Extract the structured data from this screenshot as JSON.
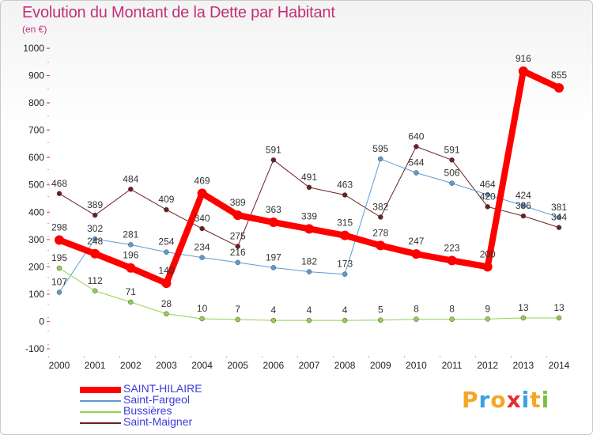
{
  "title": "Evolution du Montant de la Dette par Habitant",
  "subtitle": "(en €)",
  "brand": {
    "letters": [
      "P",
      "r",
      "o",
      "x",
      "i",
      "t",
      "i"
    ],
    "colors": [
      "#f5a623",
      "#3aa0e0",
      "#f5a623",
      "#e53030",
      "#3aa0e0",
      "#f5a623",
      "#7ac143"
    ]
  },
  "chart_data": {
    "type": "line",
    "title": "Evolution du Montant de la Dette par Habitant",
    "ylabel": "(en €)",
    "xlabel": "",
    "x": [
      "2000",
      "2001",
      "2002",
      "2003",
      "2004",
      "2005",
      "2006",
      "2007",
      "2008",
      "2009",
      "2010",
      "2011",
      "2012",
      "2013",
      "2014"
    ],
    "ylim": [
      -100,
      1000
    ],
    "yticks": [
      "-100",
      "0",
      "100",
      "200",
      "300",
      "400",
      "500",
      "600",
      "700",
      "800",
      "900",
      "1000"
    ],
    "grid": false,
    "legend_position": "bottom-left",
    "series": [
      {
        "name": "Saint-Maigner",
        "color": "#6e1e24",
        "stroke": 1,
        "values": [
          468,
          389,
          484,
          409,
          340,
          275,
          591,
          491,
          463,
          382,
          640,
          591,
          420,
          386,
          344
        ]
      },
      {
        "name": "Saint-Fargeol",
        "color": "#5b9bd5",
        "stroke": 1,
        "values": [
          107,
          302,
          281,
          254,
          234,
          216,
          197,
          182,
          173,
          595,
          544,
          506,
          464,
          424,
          381
        ]
      },
      {
        "name": "Bussières",
        "color": "#92d050",
        "stroke": 1,
        "values": [
          195,
          112,
          71,
          28,
          10,
          7,
          4,
          4,
          4,
          5,
          8,
          8,
          9,
          13,
          13
        ]
      },
      {
        "name": "SAINT-HILAIRE",
        "color": "#ff0000",
        "stroke": 8,
        "values": [
          298,
          248,
          196,
          140,
          469,
          389,
          363,
          339,
          315,
          278,
          247,
          223,
          200,
          916,
          855
        ]
      }
    ],
    "legend_order": [
      "SAINT-HILAIRE",
      "Saint-Fargeol",
      "Bussières",
      "Saint-Maigner"
    ]
  }
}
